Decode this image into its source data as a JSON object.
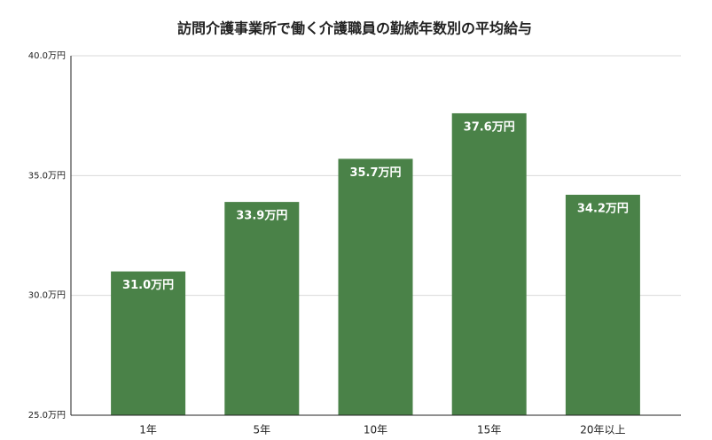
{
  "chart_data": {
    "type": "bar",
    "title": "訪問介護事業所で働く介護職員の勤続年数別の平均給与",
    "categories": [
      "1年",
      "5年",
      "10年",
      "15年",
      "20年以上"
    ],
    "values": [
      31.0,
      33.9,
      35.7,
      37.6,
      34.2
    ],
    "value_labels": [
      "31.0万円",
      "33.9万円",
      "35.7万円",
      "37.6万円",
      "34.2万円"
    ],
    "color": "#4a8248",
    "ylim": [
      25,
      40
    ],
    "yticks": [
      {
        "value": 25,
        "label": "25.0万円"
      },
      {
        "value": 30,
        "label": "30.0万円"
      },
      {
        "value": 35,
        "label": "35.0万円"
      },
      {
        "value": 40,
        "label": "40.0万円"
      }
    ],
    "grid": true
  }
}
